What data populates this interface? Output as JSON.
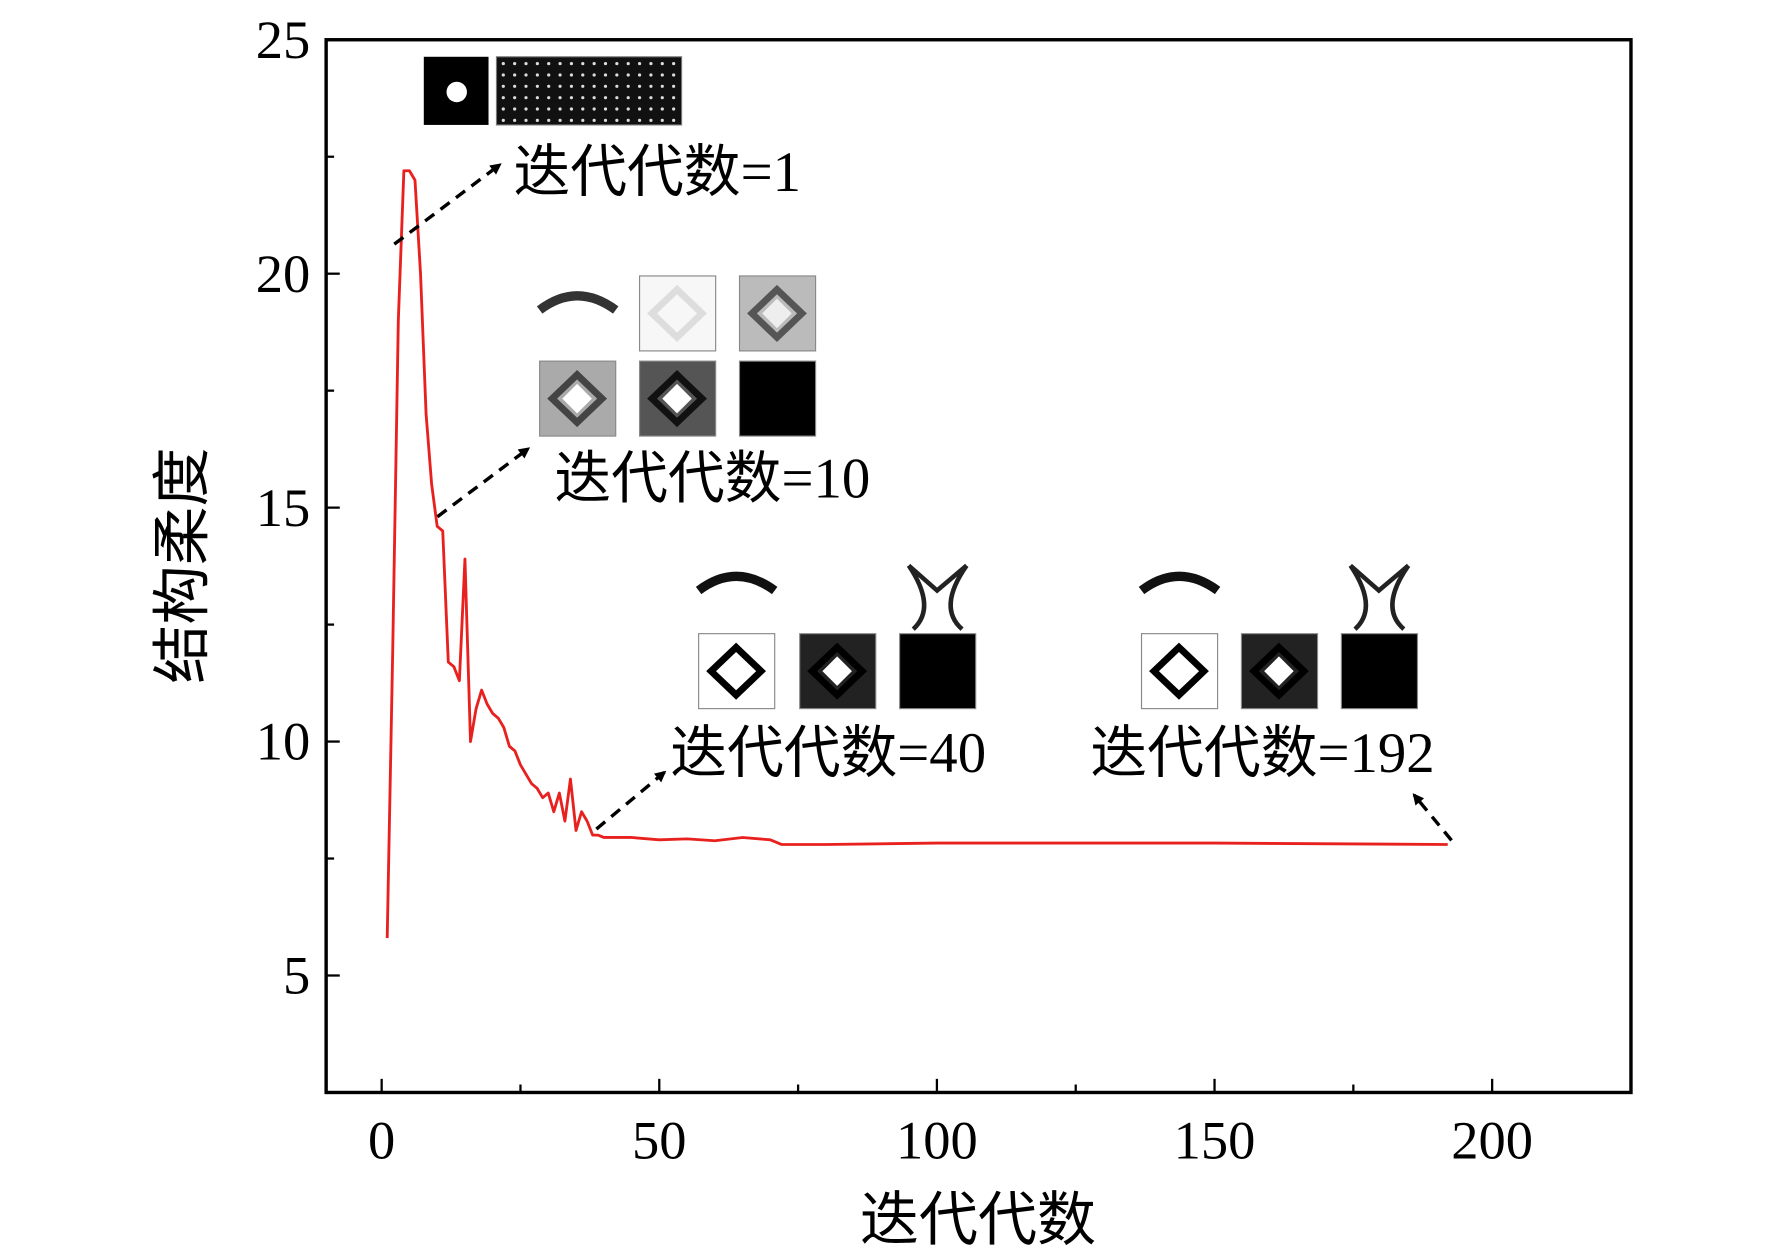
{
  "chart_data": {
    "type": "line",
    "x_label": "迭代代数",
    "y_label": "结构柔度",
    "x": [
      1,
      2,
      3,
      4,
      5,
      6,
      7,
      8,
      9,
      10,
      11,
      12,
      13,
      14,
      15,
      16,
      17,
      18,
      19,
      20,
      21,
      22,
      23,
      24,
      25,
      26,
      27,
      28,
      29,
      30,
      31,
      32,
      33,
      34,
      35,
      36,
      37,
      38,
      39,
      40,
      45,
      50,
      55,
      60,
      65,
      70,
      72,
      80,
      100,
      150,
      192
    ],
    "series": [
      {
        "color": "#e8211f",
        "values": [
          5.8,
          12,
          19,
          22.2,
          22.2,
          22.0,
          20,
          17,
          15.5,
          14.6,
          14.5,
          11.7,
          11.6,
          11.3,
          13.9,
          10,
          10.7,
          11.1,
          10.8,
          10.6,
          10.5,
          10.3,
          9.9,
          9.8,
          9.5,
          9.3,
          9.1,
          9.0,
          8.8,
          8.9,
          8.5,
          8.9,
          8.3,
          9.2,
          8.1,
          8.5,
          8.3,
          8.0,
          8.0,
          7.95,
          7.95,
          7.9,
          7.92,
          7.88,
          7.95,
          7.9,
          7.8,
          7.8,
          7.83,
          7.83,
          7.8
        ]
      }
    ],
    "xlim": [
      -10,
      225
    ],
    "ylim": [
      2.5,
      25
    ],
    "xticks": [
      0,
      50,
      100,
      150,
      200
    ],
    "yticks": [
      5,
      10,
      15,
      20,
      25
    ],
    "x_minor_ticks": [
      25,
      75,
      125,
      175
    ],
    "y_minor_ticks": [
      7.5,
      12.5,
      17.5,
      22.5
    ],
    "annotations": [
      {
        "text": "迭代代数=1"
      },
      {
        "text": "迭代代数=10"
      },
      {
        "text": "迭代代数=40"
      },
      {
        "text": "迭代代数=192"
      }
    ]
  }
}
